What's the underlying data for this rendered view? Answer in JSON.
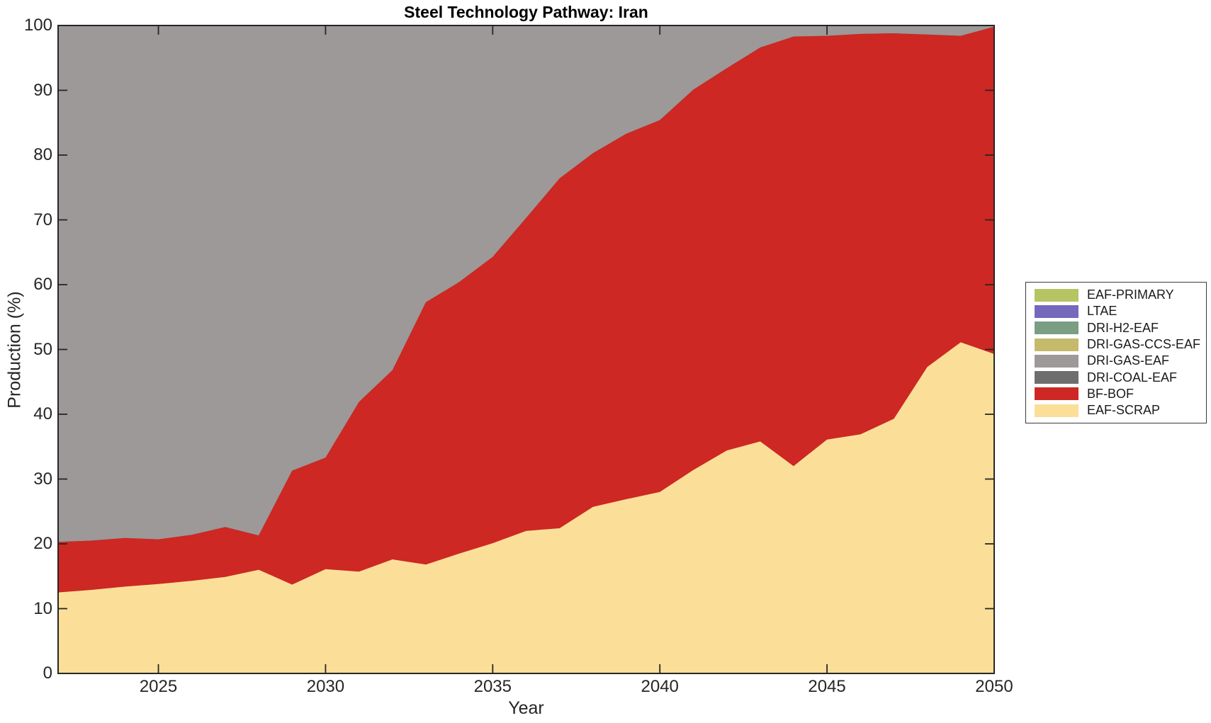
{
  "chart_data": {
    "type": "area",
    "stacked": true,
    "title": "Steel Technology Pathway: Iran",
    "xlabel": "Year",
    "ylabel": "Production (%)",
    "xlim": [
      2022,
      2050
    ],
    "ylim": [
      0,
      100
    ],
    "xticks": [
      2025,
      2030,
      2035,
      2040,
      2045,
      2050
    ],
    "yticks": [
      0,
      10,
      20,
      30,
      40,
      50,
      60,
      70,
      80,
      90,
      100
    ],
    "grid": false,
    "legend_position": "right-outside",
    "axis_color": "#262626",
    "background": "#ffffff",
    "x": [
      2022,
      2023,
      2024,
      2025,
      2026,
      2027,
      2028,
      2029,
      2030,
      2031,
      2032,
      2033,
      2034,
      2035,
      2036,
      2037,
      2038,
      2039,
      2040,
      2041,
      2042,
      2043,
      2044,
      2045,
      2046,
      2047,
      2048,
      2049,
      2050
    ],
    "series": [
      {
        "name": "EAF-SCRAP",
        "color": "#FBDF99",
        "values": [
          12.5,
          12.9,
          13.4,
          13.8,
          14.3,
          14.9,
          16.0,
          13.7,
          16.1,
          15.7,
          17.6,
          16.8,
          18.5,
          20.1,
          22.0,
          22.4,
          25.7,
          26.9,
          28.0,
          31.4,
          34.4,
          35.8,
          32.0,
          36.1,
          36.9,
          39.3,
          47.3,
          51.1,
          49.3
        ]
      },
      {
        "name": "BF-BOF",
        "color": "#CD2823",
        "values": [
          7.8,
          7.6,
          7.5,
          6.9,
          7.1,
          7.7,
          5.3,
          17.6,
          17.2,
          26.2,
          29.2,
          40.5,
          41.9,
          44.2,
          48.3,
          54.0,
          54.6,
          56.4,
          57.4,
          58.7,
          59.0,
          60.8,
          66.3,
          62.3,
          61.8,
          59.5,
          51.3,
          47.3,
          50.5
        ]
      },
      {
        "name": "DRI-COAL-EAF",
        "color": "#6E6E6E",
        "values": [
          0,
          0,
          0,
          0,
          0,
          0,
          0,
          0,
          0,
          0,
          0,
          0,
          0,
          0,
          0,
          0,
          0,
          0,
          0,
          0,
          0,
          0,
          0,
          0,
          0,
          0,
          0,
          0,
          0
        ]
      },
      {
        "name": "DRI-GAS-EAF",
        "color": "#9C9998",
        "values": [
          79.7,
          79.5,
          79.1,
          79.3,
          78.6,
          77.4,
          78.7,
          68.7,
          66.7,
          58.1,
          53.2,
          42.7,
          39.6,
          35.7,
          29.7,
          23.6,
          19.7,
          16.7,
          14.6,
          9.9,
          6.6,
          3.4,
          1.7,
          1.6,
          1.3,
          1.2,
          1.4,
          1.6,
          0.2
        ]
      },
      {
        "name": "DRI-GAS-CCS-EAF",
        "color": "#C5BA6B",
        "values": [
          0,
          0,
          0,
          0,
          0,
          0,
          0,
          0,
          0,
          0,
          0,
          0,
          0,
          0,
          0,
          0,
          0,
          0,
          0,
          0,
          0,
          0,
          0,
          0,
          0,
          0,
          0,
          0,
          0
        ]
      },
      {
        "name": "DRI-H2-EAF",
        "color": "#799E84",
        "values": [
          0,
          0,
          0,
          0,
          0,
          0,
          0,
          0,
          0,
          0,
          0,
          0,
          0,
          0,
          0,
          0,
          0,
          0,
          0,
          0,
          0,
          0,
          0,
          0,
          0,
          0,
          0,
          0,
          0
        ]
      },
      {
        "name": "LTAE",
        "color": "#7569BD",
        "values": [
          0,
          0,
          0,
          0,
          0,
          0,
          0,
          0,
          0,
          0,
          0,
          0,
          0,
          0,
          0,
          0,
          0,
          0,
          0,
          0,
          0,
          0,
          0,
          0,
          0,
          0,
          0,
          0,
          0
        ]
      },
      {
        "name": "EAF-PRIMARY",
        "color": "#B7C464",
        "values": [
          0,
          0,
          0,
          0,
          0,
          0,
          0,
          0,
          0,
          0,
          0,
          0,
          0,
          0,
          0,
          0,
          0,
          0,
          0,
          0,
          0,
          0,
          0,
          0,
          0,
          0,
          0,
          0,
          0
        ]
      }
    ],
    "legend_order_top_to_bottom": [
      "EAF-PRIMARY",
      "LTAE",
      "DRI-H2-EAF",
      "DRI-GAS-CCS-EAF",
      "DRI-GAS-EAF",
      "DRI-COAL-EAF",
      "BF-BOF",
      "EAF-SCRAP"
    ]
  }
}
